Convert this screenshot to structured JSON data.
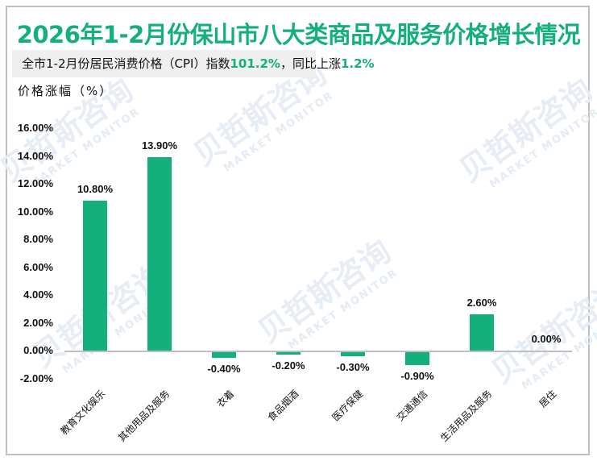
{
  "title": "2026年1-2月份保山市八大类商品及服务价格增长情况",
  "subtitle": {
    "prefix": "全市1-2月份居民消费价格（CPI）指数",
    "index_value": "101.2%",
    "middle": "，同比上涨",
    "yoy_value": "1.2%"
  },
  "y_axis_title": "价格涨幅（%）",
  "watermark": {
    "cn": "贝哲斯咨询",
    "en": "MARKET MONITOR"
  },
  "colors": {
    "accent": "#13b07c",
    "bar": "#13b07c",
    "axis": "#bfbfbf"
  },
  "y_ticks": [
    "16.00%",
    "14.00%",
    "12.00%",
    "10.00%",
    "8.00%",
    "6.00%",
    "4.00%",
    "2.00%",
    "0.00%",
    "-2.00%"
  ],
  "bars": [
    {
      "category": "教育文化娱乐",
      "value": 10.8,
      "label": "10.80%"
    },
    {
      "category": "其他用品及服务",
      "value": 13.9,
      "label": "13.90%"
    },
    {
      "category": "衣着",
      "value": -0.4,
      "label": "-0.40%"
    },
    {
      "category": "食品烟酒",
      "value": -0.2,
      "label": "-0.20%"
    },
    {
      "category": "医疗保健",
      "value": -0.3,
      "label": "-0.30%"
    },
    {
      "category": "交通通信",
      "value": -0.9,
      "label": "-0.90%"
    },
    {
      "category": "生活用品及服务",
      "value": 2.6,
      "label": "2.60%"
    },
    {
      "category": "居住",
      "value": 0.0,
      "label": "0.00%"
    }
  ],
  "chart_data": {
    "type": "bar",
    "title": "2026年1-2月份保山市八大类商品及服务价格增长情况",
    "subtitle": "全市1-2月份居民消费价格（CPI）指数101.2%，同比上涨1.2%",
    "categories": [
      "教育文化娱乐",
      "其他用品及服务",
      "衣着",
      "食品烟酒",
      "医疗保健",
      "交通通信",
      "生活用品及服务",
      "居住"
    ],
    "values": [
      10.8,
      13.9,
      -0.4,
      -0.2,
      -0.3,
      -0.9,
      2.6,
      0.0
    ],
    "data_labels": [
      "10.80%",
      "13.90%",
      "-0.40%",
      "-0.20%",
      "-0.30%",
      "-0.90%",
      "2.60%",
      "0.00%"
    ],
    "xlabel": "",
    "ylabel": "价格涨幅（%）",
    "ylim": [
      -2,
      16
    ],
    "y_tick_step": 2,
    "grid": false,
    "legend": "none"
  }
}
